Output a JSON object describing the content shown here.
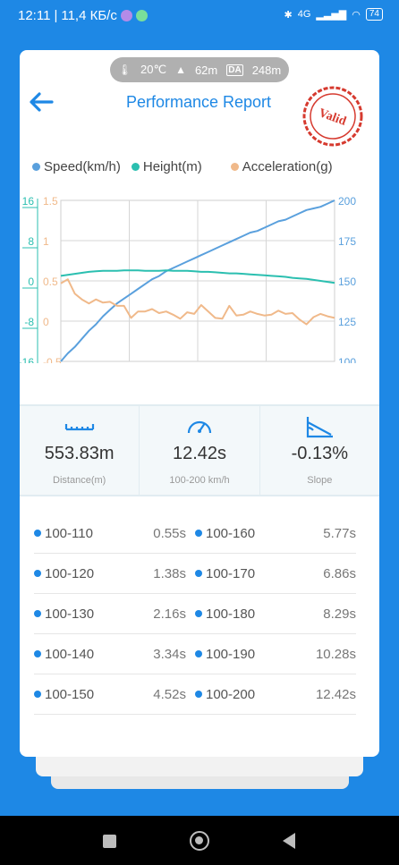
{
  "status": {
    "time": "12:11",
    "net": "11,4 КБ/с",
    "signal": "4G",
    "battery": "74"
  },
  "conditions": {
    "temp": "20℃",
    "altitude": "62m",
    "da_label": "DA",
    "da_value": "248m"
  },
  "header": {
    "title": "Performance Report",
    "stamp": "Valid"
  },
  "legend": [
    {
      "label": "Speed(km/h)",
      "color": "#5aa0dd"
    },
    {
      "label": "Height(m)",
      "color": "#2bbfb0"
    },
    {
      "label": "Acceleration(g)",
      "color": "#f0b98a"
    }
  ],
  "chart_data": {
    "type": "line",
    "x_ticks": 4,
    "axes": {
      "height": {
        "ticks": [
          "16",
          "8",
          "0",
          "-8",
          "-16"
        ],
        "color": "#2bbfb0"
      },
      "accel": {
        "ticks": [
          "1.5",
          "1",
          "0.5",
          "0",
          "-0.5"
        ],
        "color": "#f0b98a"
      },
      "speed": {
        "ticks": [
          "200",
          "175",
          "150",
          "125",
          "100"
        ],
        "color": "#5aa0dd"
      }
    },
    "ylim_speed": [
      100,
      200
    ],
    "ylim_height": [
      -16,
      16
    ],
    "ylim_accel": [
      -0.5,
      1.5
    ],
    "series": [
      {
        "name": "Speed(km/h)",
        "axis": "speed",
        "color": "#5aa0dd",
        "values": [
          100,
          105,
          109,
          114,
          119,
          123,
          128,
          132,
          136,
          139,
          142,
          145,
          148,
          151,
          153,
          156,
          158,
          160,
          162,
          164,
          166,
          168,
          170,
          172,
          174,
          176,
          178,
          180,
          181,
          183,
          185,
          187,
          188,
          190,
          192,
          194,
          195,
          196,
          198,
          200
        ]
      },
      {
        "name": "Height(m)",
        "axis": "height",
        "color": "#2bbfb0",
        "values": [
          1,
          1.2,
          1.4,
          1.6,
          1.8,
          1.9,
          2,
          2,
          2,
          2.1,
          2.1,
          2.1,
          2,
          2,
          2,
          2.1,
          2,
          2,
          2,
          1.9,
          1.8,
          1.8,
          1.7,
          1.6,
          1.5,
          1.5,
          1.4,
          1.3,
          1.2,
          1.1,
          1,
          0.9,
          0.8,
          0.6,
          0.5,
          0.4,
          0.2,
          0,
          -0.2,
          -0.4
        ]
      },
      {
        "name": "Acceleration(g)",
        "axis": "accel",
        "color": "#f0b98a",
        "values": [
          0.47,
          0.52,
          0.34,
          0.27,
          0.22,
          0.27,
          0.23,
          0.24,
          0.19,
          0.19,
          0.04,
          0.12,
          0.12,
          0.15,
          0.1,
          0.12,
          0.08,
          0.03,
          0.11,
          0.09,
          0.2,
          0.12,
          0.04,
          0.03,
          0.19,
          0.07,
          0.08,
          0.12,
          0.09,
          0.07,
          0.08,
          0.13,
          0.09,
          0.1,
          0.02,
          -0.04,
          0.05,
          0.09,
          0.06,
          0.04
        ]
      }
    ]
  },
  "stats": [
    {
      "icon": "ruler-icon",
      "value": "553.83m",
      "label": "Distance(m)"
    },
    {
      "icon": "speedometer-icon",
      "value": "12.42s",
      "label": "100-200 km/h"
    },
    {
      "icon": "slope-icon",
      "value": "-0.13%",
      "label": "Slope"
    }
  ],
  "splits": [
    [
      {
        "range": "100-110",
        "time": "0.55s"
      },
      {
        "range": "100-160",
        "time": "5.77s"
      }
    ],
    [
      {
        "range": "100-120",
        "time": "1.38s"
      },
      {
        "range": "100-170",
        "time": "6.86s"
      }
    ],
    [
      {
        "range": "100-130",
        "time": "2.16s"
      },
      {
        "range": "100-180",
        "time": "8.29s"
      }
    ],
    [
      {
        "range": "100-140",
        "time": "3.34s"
      },
      {
        "range": "100-190",
        "time": "10.28s"
      }
    ],
    [
      {
        "range": "100-150",
        "time": "4.52s"
      },
      {
        "range": "100-200",
        "time": "12.42s"
      }
    ]
  ]
}
